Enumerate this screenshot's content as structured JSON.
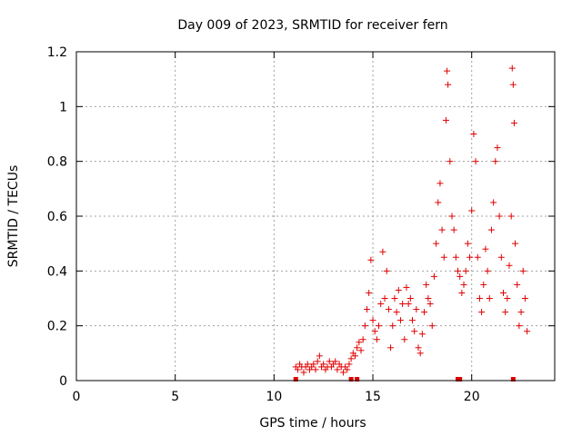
{
  "chart_data": {
    "type": "scatter",
    "title": "Day 009 of 2023, SRMTID for receiver fern",
    "xlabel": "GPS time / hours",
    "ylabel": "SRMTID / TECUs",
    "xlim": [
      0,
      24.2
    ],
    "ylim": [
      0,
      1.2
    ],
    "xticks": [
      0,
      5,
      10,
      15,
      20
    ],
    "xtick_labels": [
      "0",
      "5",
      "10",
      "15",
      "20"
    ],
    "yticks": [
      0,
      0.2,
      0.4,
      0.6,
      0.8,
      1,
      1.2
    ],
    "ytick_labels": [
      "0",
      "0.2",
      "0.4",
      "0.6",
      "0.8",
      "1",
      "1.2"
    ],
    "grid": true,
    "marker": "+",
    "color": "#e00000",
    "series": [
      {
        "name": "SRMTID",
        "points": [
          [
            11.1,
            0.05
          ],
          [
            11.2,
            0.04
          ],
          [
            11.3,
            0.06
          ],
          [
            11.4,
            0.05
          ],
          [
            11.5,
            0.03
          ],
          [
            11.6,
            0.05
          ],
          [
            11.7,
            0.06
          ],
          [
            11.8,
            0.04
          ],
          [
            11.9,
            0.05
          ],
          [
            12.0,
            0.06
          ],
          [
            12.1,
            0.04
          ],
          [
            12.2,
            0.07
          ],
          [
            12.3,
            0.09
          ],
          [
            12.4,
            0.05
          ],
          [
            12.5,
            0.06
          ],
          [
            12.6,
            0.04
          ],
          [
            12.7,
            0.05
          ],
          [
            12.8,
            0.07
          ],
          [
            12.9,
            0.05
          ],
          [
            13.0,
            0.06
          ],
          [
            13.1,
            0.07
          ],
          [
            13.2,
            0.04
          ],
          [
            13.3,
            0.06
          ],
          [
            13.4,
            0.05
          ],
          [
            13.5,
            0.03
          ],
          [
            13.6,
            0.05
          ],
          [
            13.7,
            0.04
          ],
          [
            13.8,
            0.06
          ],
          [
            13.9,
            0.08
          ],
          [
            14.0,
            0.1
          ],
          [
            14.1,
            0.09
          ],
          [
            14.2,
            0.12
          ],
          [
            14.3,
            0.14
          ],
          [
            14.4,
            0.11
          ],
          [
            14.5,
            0.15
          ],
          [
            14.6,
            0.2
          ],
          [
            14.7,
            0.26
          ],
          [
            14.8,
            0.32
          ],
          [
            14.9,
            0.44
          ],
          [
            15.0,
            0.22
          ],
          [
            15.1,
            0.18
          ],
          [
            15.2,
            0.15
          ],
          [
            15.3,
            0.2
          ],
          [
            15.4,
            0.28
          ],
          [
            15.5,
            0.47
          ],
          [
            15.6,
            0.3
          ],
          [
            15.7,
            0.4
          ],
          [
            15.8,
            0.26
          ],
          [
            15.9,
            0.12
          ],
          [
            16.0,
            0.2
          ],
          [
            16.1,
            0.3
          ],
          [
            16.2,
            0.25
          ],
          [
            16.3,
            0.33
          ],
          [
            16.4,
            0.22
          ],
          [
            16.5,
            0.28
          ],
          [
            16.6,
            0.15
          ],
          [
            16.7,
            0.34
          ],
          [
            16.8,
            0.28
          ],
          [
            16.9,
            0.3
          ],
          [
            17.0,
            0.22
          ],
          [
            17.1,
            0.18
          ],
          [
            17.2,
            0.26
          ],
          [
            17.3,
            0.12
          ],
          [
            17.4,
            0.1
          ],
          [
            17.5,
            0.17
          ],
          [
            17.6,
            0.25
          ],
          [
            17.7,
            0.35
          ],
          [
            17.8,
            0.3
          ],
          [
            17.9,
            0.28
          ],
          [
            18.0,
            0.2
          ],
          [
            18.1,
            0.38
          ],
          [
            18.2,
            0.5
          ],
          [
            18.3,
            0.65
          ],
          [
            18.4,
            0.72
          ],
          [
            18.5,
            0.55
          ],
          [
            18.6,
            0.45
          ],
          [
            18.7,
            0.95
          ],
          [
            18.75,
            1.13
          ],
          [
            18.8,
            1.08
          ],
          [
            18.9,
            0.8
          ],
          [
            19.0,
            0.6
          ],
          [
            19.1,
            0.55
          ],
          [
            19.2,
            0.45
          ],
          [
            19.3,
            0.4
          ],
          [
            19.4,
            0.38
          ],
          [
            19.5,
            0.32
          ],
          [
            19.6,
            0.35
          ],
          [
            19.7,
            0.4
          ],
          [
            19.8,
            0.5
          ],
          [
            19.9,
            0.45
          ],
          [
            20.0,
            0.62
          ],
          [
            20.1,
            0.9
          ],
          [
            20.2,
            0.8
          ],
          [
            20.3,
            0.45
          ],
          [
            20.4,
            0.3
          ],
          [
            20.5,
            0.25
          ],
          [
            20.6,
            0.35
          ],
          [
            20.7,
            0.48
          ],
          [
            20.8,
            0.4
          ],
          [
            20.9,
            0.3
          ],
          [
            21.0,
            0.55
          ],
          [
            21.1,
            0.65
          ],
          [
            21.2,
            0.8
          ],
          [
            21.3,
            0.85
          ],
          [
            21.4,
            0.6
          ],
          [
            21.5,
            0.45
          ],
          [
            21.6,
            0.32
          ],
          [
            21.7,
            0.25
          ],
          [
            21.8,
            0.3
          ],
          [
            21.9,
            0.42
          ],
          [
            22.0,
            0.6
          ],
          [
            22.05,
            1.14
          ],
          [
            22.1,
            1.08
          ],
          [
            22.15,
            0.94
          ],
          [
            22.2,
            0.5
          ],
          [
            22.3,
            0.35
          ],
          [
            22.4,
            0.2
          ],
          [
            22.5,
            0.25
          ],
          [
            22.6,
            0.4
          ],
          [
            22.7,
            0.3
          ],
          [
            22.8,
            0.18
          ]
        ]
      }
    ],
    "near_zero_x": [
      11.1,
      13.9,
      14.2,
      19.3,
      19.4,
      22.1
    ]
  }
}
